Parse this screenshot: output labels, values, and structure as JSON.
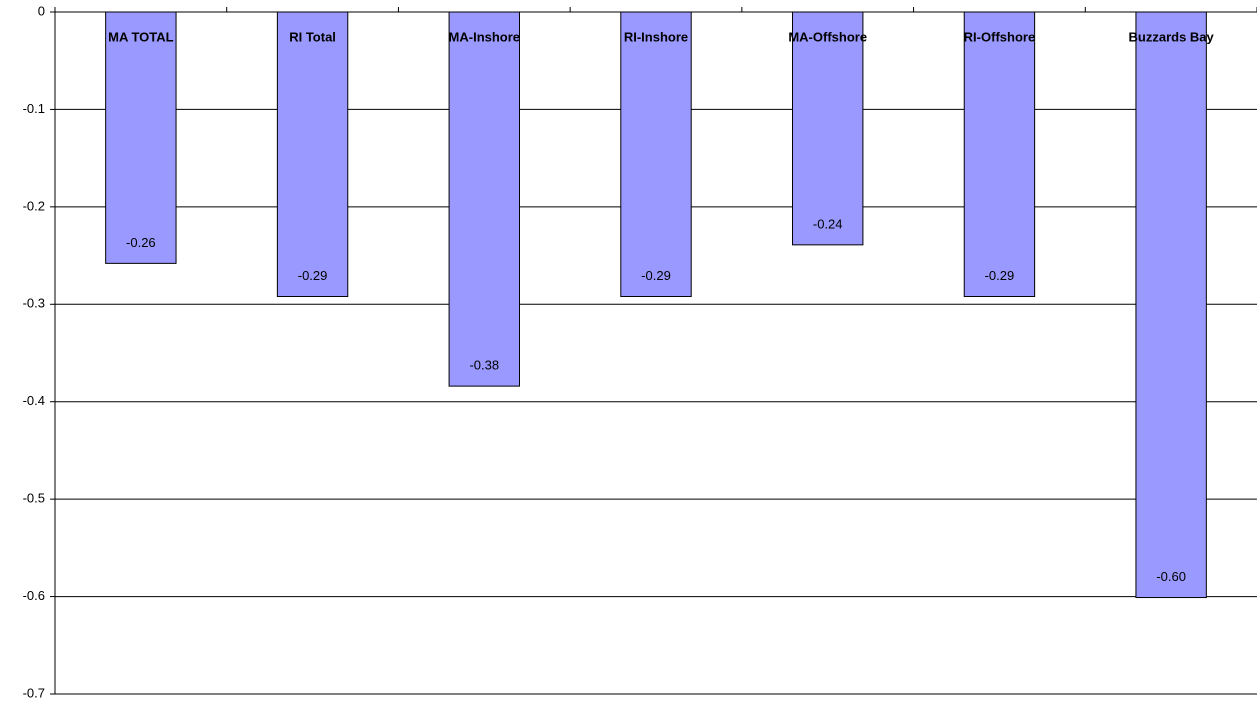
{
  "chart_data": {
    "type": "bar",
    "categories": [
      "MA TOTAL",
      "RI Total",
      "MA-Inshore",
      "RI-Inshore",
      "MA-Offshore",
      "RI-Offshore",
      "Buzzards Bay"
    ],
    "values": [
      -0.258,
      -0.292,
      -0.384,
      -0.292,
      -0.239,
      -0.292,
      -0.601
    ],
    "value_labels": [
      "-0.26",
      "-0.29",
      "-0.38",
      "-0.29",
      "-0.24",
      "-0.29",
      "-0.60"
    ],
    "color": "#9999ff",
    "ylim": [
      -0.7,
      0
    ],
    "yticks": [
      0,
      -0.1,
      -0.2,
      -0.3,
      -0.4,
      -0.5,
      -0.6,
      -0.7
    ],
    "grid": true
  }
}
